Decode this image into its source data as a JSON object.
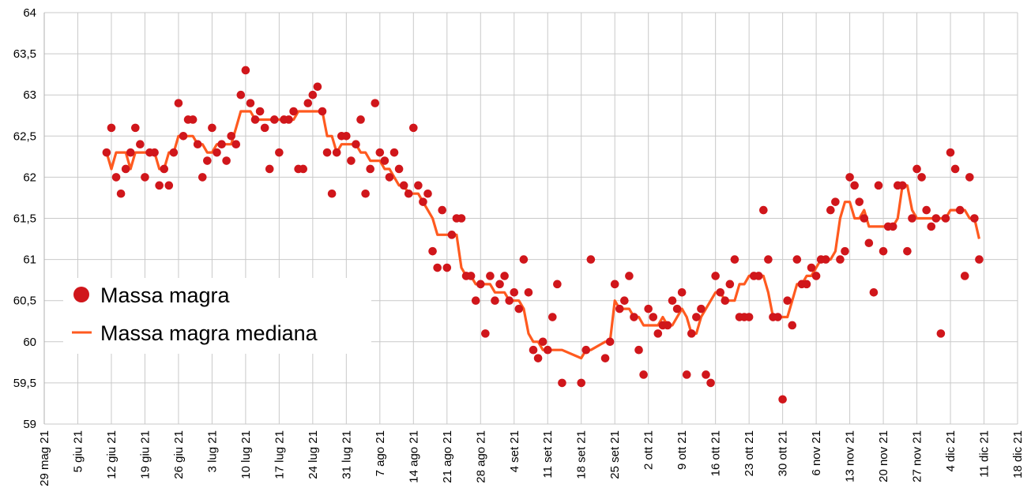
{
  "chart_data": {
    "type": "scatter",
    "title": "",
    "xlabel": "",
    "ylabel": "",
    "xlim": [
      "2021-05-29",
      "2021-12-18"
    ],
    "ylim": [
      59,
      64
    ],
    "grid": true,
    "legend_position": "left",
    "y_ticks": [
      "59",
      "59,5",
      "60",
      "60,5",
      "61",
      "61,5",
      "62",
      "62,5",
      "63",
      "63,5",
      "64"
    ],
    "x_ticks": [
      "29 mag 21",
      "5 giu 21",
      "12 giu 21",
      "19 giu 21",
      "26 giu 21",
      "3 lug 21",
      "10 lug 21",
      "17 lug 21",
      "24 lug 21",
      "31 lug 21",
      "7 ago 21",
      "14 ago 21",
      "21 ago 21",
      "28 ago 21",
      "4 set 21",
      "11 set 21",
      "18 set 21",
      "25 set 21",
      "2 ott 21",
      "9 ott 21",
      "16 ott 21",
      "23 ott 21",
      "30 ott 21",
      "6 nov 21",
      "13 nov 21",
      "20 nov 21",
      "27 nov 21",
      "4 dic 21",
      "11 dic 21",
      "18 dic 21"
    ],
    "colors": {
      "points": "#d0161b",
      "median": "#ff5a1f",
      "grid": "#c9c9c9"
    },
    "series": [
      {
        "name": "Massa magra",
        "type": "scatter",
        "start_dates": {
          "2021-06-11": [
            62.3,
            62.6,
            62.0,
            61.8,
            62.1,
            62.3,
            62.6,
            62.4,
            62.0,
            62.3,
            62.3,
            61.9,
            62.1,
            61.9,
            62.3,
            62.9,
            62.5,
            62.7,
            62.7,
            62.4,
            62.0,
            62.2,
            62.6,
            62.3,
            62.4,
            62.2,
            62.5,
            62.4,
            63.0,
            63.3,
            62.9,
            62.7,
            62.8,
            62.6,
            62.1,
            62.7,
            62.3,
            62.7,
            62.7,
            62.8,
            62.1,
            62.1,
            62.9,
            63.0,
            63.1,
            62.8,
            62.3,
            61.8,
            62.3,
            62.5,
            62.5,
            62.2,
            62.4,
            62.7,
            61.8,
            62.1,
            62.9,
            62.3,
            62.2,
            62.0,
            62.3,
            62.1,
            61.9,
            61.8,
            62.6,
            61.9,
            61.7,
            61.8,
            61.1,
            60.9,
            61.6,
            60.9,
            61.3,
            61.5,
            61.5,
            60.8,
            60.8,
            60.5,
            60.7,
            60.1,
            60.8,
            60.5,
            60.7,
            60.8,
            60.5,
            60.6,
            60.4,
            61.0,
            60.6,
            59.9,
            59.8,
            60.0,
            59.9,
            60.3,
            60.7,
            59.5
          ],
          "2021-09-18": [
            59.5,
            59.9,
            61.0
          ],
          "2021-09-23": [
            59.8,
            60.0,
            60.7,
            60.4,
            60.5,
            60.8,
            60.3,
            59.9,
            59.6,
            60.4,
            60.3,
            60.1,
            60.2,
            60.2,
            60.5,
            60.4,
            60.6,
            59.6,
            60.1,
            60.3,
            60.4,
            59.6,
            59.5,
            60.8,
            60.6,
            60.5,
            60.7,
            61.0,
            60.3,
            60.3,
            60.3,
            60.8,
            60.8,
            61.6,
            61.0,
            60.3,
            60.3,
            59.3,
            60.5,
            60.2,
            61.0,
            60.7,
            60.7,
            60.9,
            60.8,
            61.0,
            61.0,
            61.6,
            61.7,
            61.0,
            61.1,
            62.0,
            61.9,
            61.7,
            61.5,
            61.2,
            60.6,
            61.9,
            61.1,
            61.4,
            61.4,
            61.9,
            61.9,
            61.1,
            61.5,
            62.1,
            62.0,
            61.6,
            61.4,
            61.5,
            60.1,
            61.5,
            62.3,
            62.1,
            61.6,
            60.8,
            62.0,
            61.5,
            61.0
          ]
        }
      },
      {
        "name": "Massa magra mediana",
        "type": "line",
        "start_dates": {
          "2021-06-11": [
            62.3,
            62.1,
            62.3,
            62.3,
            62.3,
            62.1,
            62.3,
            62.3,
            62.3,
            62.3,
            62.3,
            62.1,
            62.1,
            62.3,
            62.3,
            62.5,
            62.5,
            62.5,
            62.5,
            62.4,
            62.4,
            62.3,
            62.3,
            62.4,
            62.4,
            62.4,
            62.4,
            62.6,
            62.8,
            62.8,
            62.8,
            62.7,
            62.7,
            62.7,
            62.7,
            62.7,
            62.7,
            62.7,
            62.7,
            62.7,
            62.8,
            62.8,
            62.8,
            62.8,
            62.8,
            62.8,
            62.5,
            62.5,
            62.3,
            62.4,
            62.4,
            62.4,
            62.4,
            62.3,
            62.3,
            62.2,
            62.2,
            62.2,
            62.1,
            62.1,
            62.0,
            61.9,
            61.9,
            61.8,
            61.8,
            61.8,
            61.7,
            61.6,
            61.5,
            61.3,
            61.3,
            61.3,
            61.3,
            61.3,
            60.9,
            60.8,
            60.8,
            60.7,
            60.7,
            60.7,
            60.7,
            60.6,
            60.6,
            60.6,
            60.5,
            60.5,
            60.5,
            60.4,
            60.1,
            60.0,
            60.0,
            59.9,
            59.9,
            59.9,
            59.9,
            59.9
          ],
          "2021-09-18": [
            59.8,
            59.9,
            59.9
          ],
          "2021-09-23": [
            60.0,
            60.0,
            60.5,
            60.4,
            60.4,
            60.4,
            60.3,
            60.3,
            60.2,
            60.2,
            60.2,
            60.2,
            60.3,
            60.2,
            60.2,
            60.3,
            60.4,
            60.3,
            60.1,
            60.1,
            60.3,
            60.4,
            60.5,
            60.6,
            60.6,
            60.5,
            60.5,
            60.5,
            60.7,
            60.7,
            60.8,
            60.8,
            60.8,
            60.8,
            60.6,
            60.3,
            60.3,
            60.3,
            60.3,
            60.5,
            60.7,
            60.7,
            60.8,
            60.8,
            60.9,
            61.0,
            61.0,
            61.0,
            61.1,
            61.5,
            61.7,
            61.7,
            61.5,
            61.5,
            61.6,
            61.4,
            61.4,
            61.4,
            61.4,
            61.4,
            61.4,
            61.5,
            61.9,
            61.9,
            61.6,
            61.5,
            61.5,
            61.5,
            61.5,
            61.5,
            61.5,
            61.5,
            61.6,
            61.6,
            61.6,
            61.6,
            61.5,
            61.5,
            61.25
          ]
        }
      }
    ]
  }
}
